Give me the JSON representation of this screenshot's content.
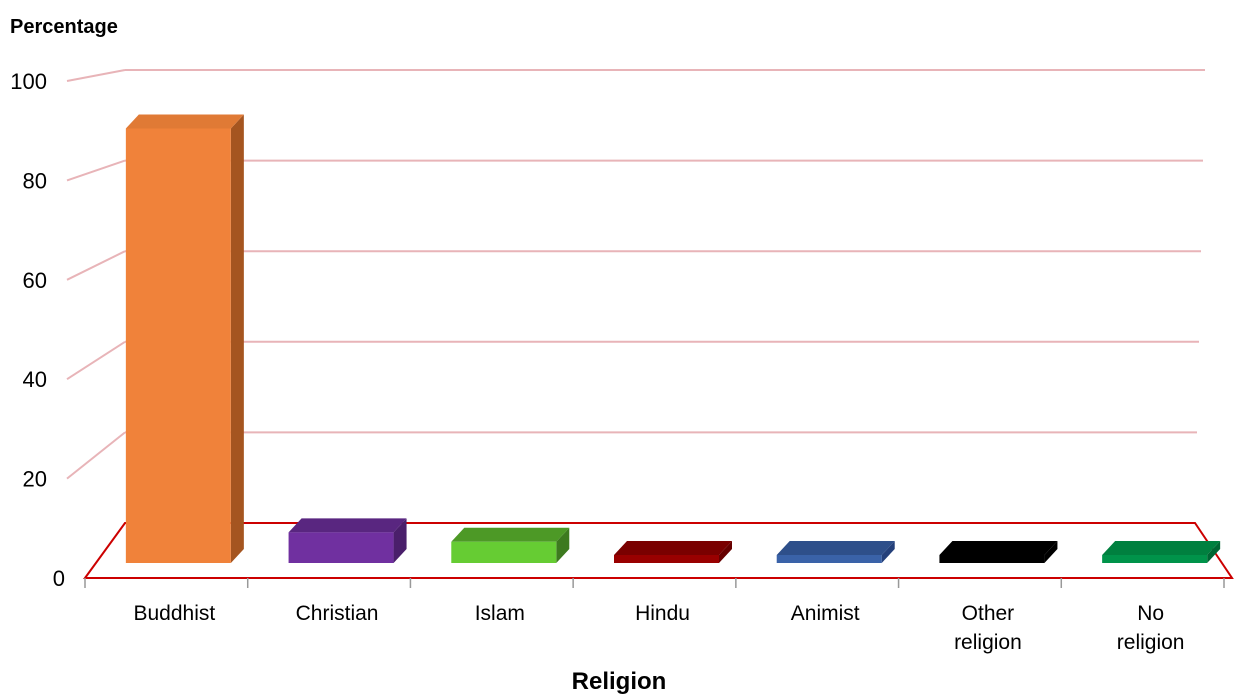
{
  "chart_data": {
    "type": "bar",
    "title": "",
    "ylabel": "Percentage",
    "xlabel": "Religion",
    "ylim": [
      0,
      100
    ],
    "yticks": [
      "0",
      "20",
      "40",
      "60",
      "80",
      "100"
    ],
    "categories": [
      "Buddhist",
      "Christian",
      "Islam",
      "Hindu",
      "Animist",
      "Other religion",
      "No religion"
    ],
    "category_lines": [
      [
        "Buddhist"
      ],
      [
        "Christian"
      ],
      [
        "Islam"
      ],
      [
        "Hindu"
      ],
      [
        "Animist"
      ],
      [
        "Other",
        "religion"
      ],
      [
        "No",
        "religion"
      ]
    ],
    "values": [
      87.9,
      6.2,
      4.3,
      0.5,
      0.8,
      0.2,
      0.1
    ],
    "colors": {
      "front": [
        "#f0823a",
        "#7030a0",
        "#66cc33",
        "#990000",
        "#3a62a8",
        "#000000",
        "#00934a"
      ],
      "top": [
        "#e07a35",
        "#592680",
        "#4d9926",
        "#7a0000",
        "#2e4f8a",
        "#000000",
        "#00803f"
      ],
      "side": [
        "#a55520",
        "#4a1f6b",
        "#3d7a1f",
        "#660000",
        "#24407a",
        "#000000",
        "#006633"
      ],
      "gridline": "#e8b4b8",
      "axis": "#cc0000"
    },
    "grid": true
  }
}
